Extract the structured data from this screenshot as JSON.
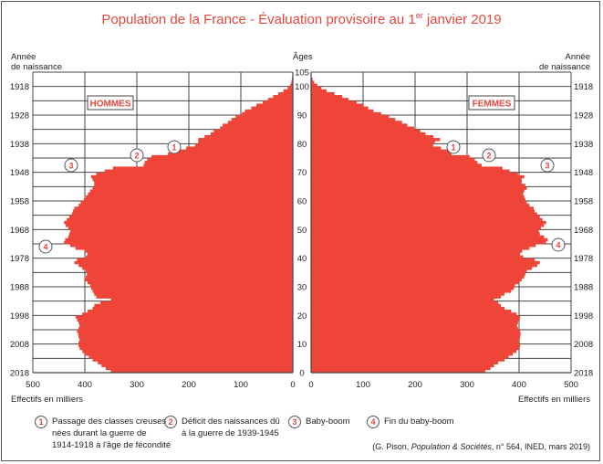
{
  "title": {
    "main": "Population de la France - Évaluation provisoire au 1",
    "sup": "er",
    "tail": " janvier 2019"
  },
  "headers": {
    "left_year_label": [
      "Année",
      "de naissance"
    ],
    "center_age_label": "Âges",
    "right_year_label": [
      "Année",
      "de naissance"
    ],
    "left_x_label": "Effectifs en milliers",
    "right_x_label": "Effectifs en milliers",
    "men_label": "HOMMES",
    "women_label": "FEMMES"
  },
  "legend": [
    {
      "num": "1",
      "lines": [
        "Passage des classes creuses",
        "nées durant la guerre de",
        "1914-1918 à l'âge de fécondité"
      ]
    },
    {
      "num": "2",
      "lines": [
        "Déficit des naissances dû",
        "à la guerre de 1939-1945"
      ]
    },
    {
      "num": "3",
      "lines": [
        "Baby-boom"
      ]
    },
    {
      "num": "4",
      "lines": [
        "Fin du baby-boom"
      ]
    }
  ],
  "source": {
    "prefix": "(G. Pison, ",
    "italic": "Population & Sociétés",
    "suffix": ", n° 564, INED, mars 2019)"
  },
  "colors": {
    "bar": "#ef4438",
    "accent": "#e8463c",
    "grid": "#444444"
  },
  "chart_data": {
    "type": "bar",
    "orientation": "horizontal-pyramid",
    "title": "Population de la France - Évaluation provisoire au 1er janvier 2019",
    "xlabel": "Effectifs en milliers",
    "ylabel": "Âges",
    "xlim": [
      0,
      500
    ],
    "ylim": [
      0,
      105
    ],
    "x_ticks": [
      500,
      400,
      300,
      200,
      100,
      0
    ],
    "age_ticks": [
      0,
      10,
      20,
      30,
      40,
      50,
      60,
      70,
      80,
      90,
      100,
      105
    ],
    "birth_year_ticks": [
      1918,
      1928,
      1938,
      1948,
      1958,
      1968,
      1978,
      1988,
      1998,
      2008,
      2018
    ],
    "grid": true,
    "annotations": [
      {
        "num": "1",
        "age": 80,
        "label": "Passage des classes creuses nées durant la guerre de 1914-1918 à l'âge de fécondité"
      },
      {
        "num": "2",
        "age": 75,
        "label": "Déficit des naissances dû à la guerre de 1939-1945"
      },
      {
        "num": "3",
        "age": 72,
        "label": "Baby-boom"
      },
      {
        "num": "4",
        "age": 44,
        "label": "Fin du baby-boom"
      }
    ],
    "ages": [
      0,
      1,
      2,
      3,
      4,
      5,
      6,
      7,
      8,
      9,
      10,
      11,
      12,
      13,
      14,
      15,
      16,
      17,
      18,
      19,
      20,
      21,
      22,
      23,
      24,
      25,
      26,
      27,
      28,
      29,
      30,
      31,
      32,
      33,
      34,
      35,
      36,
      37,
      38,
      39,
      40,
      41,
      42,
      43,
      44,
      45,
      46,
      47,
      48,
      49,
      50,
      51,
      52,
      53,
      54,
      55,
      56,
      57,
      58,
      59,
      60,
      61,
      62,
      63,
      64,
      65,
      66,
      67,
      68,
      69,
      70,
      71,
      72,
      73,
      74,
      75,
      76,
      77,
      78,
      79,
      80,
      81,
      82,
      83,
      84,
      85,
      86,
      87,
      88,
      89,
      90,
      91,
      92,
      93,
      94,
      95,
      96,
      97,
      98,
      99,
      100,
      101,
      102,
      103,
      104
    ],
    "series": [
      {
        "name": "Hommes",
        "values": [
          350,
          360,
          368,
          375,
          385,
          392,
          400,
          405,
          410,
          412,
          412,
          410,
          412,
          413,
          415,
          412,
          410,
          412,
          415,
          418,
          405,
          395,
          385,
          382,
          370,
          350,
          378,
          382,
          385,
          388,
          390,
          395,
          400,
          398,
          396,
          398,
          405,
          412,
          420,
          415,
          398,
          395,
          400,
          418,
          428,
          440,
          438,
          432,
          430,
          428,
          432,
          437,
          440,
          435,
          430,
          425,
          423,
          420,
          412,
          408,
          402,
          398,
          394,
          390,
          385,
          382,
          382,
          385,
          388,
          378,
          362,
          346,
          287,
          285,
          280,
          272,
          240,
          222,
          205,
          188,
          182,
          182,
          170,
          158,
          152,
          140,
          135,
          125,
          118,
          110,
          98,
          92,
          80,
          70,
          58,
          48,
          38,
          28,
          18,
          10,
          5,
          3,
          2,
          1,
          0
        ]
      },
      {
        "name": "Femmes",
        "values": [
          335,
          345,
          352,
          360,
          372,
          380,
          388,
          395,
          400,
          402,
          400,
          400,
          402,
          403,
          402,
          398,
          396,
          398,
          400,
          402,
          395,
          385,
          372,
          365,
          360,
          352,
          365,
          372,
          385,
          390,
          392,
          400,
          405,
          410,
          412,
          415,
          425,
          435,
          440,
          430,
          408,
          402,
          406,
          420,
          432,
          452,
          455,
          448,
          440,
          438,
          442,
          448,
          452,
          445,
          440,
          435,
          430,
          428,
          420,
          415,
          412,
          410,
          408,
          410,
          415,
          412,
          405,
          405,
          410,
          398,
          382,
          368,
          328,
          320,
          315,
          305,
          270,
          265,
          250,
          235,
          238,
          248,
          235,
          220,
          210,
          198,
          185,
          175,
          162,
          150,
          135,
          120,
          110,
          100,
          88,
          72,
          60,
          45,
          30,
          20,
          12,
          6,
          3,
          1,
          0
        ]
      }
    ]
  }
}
